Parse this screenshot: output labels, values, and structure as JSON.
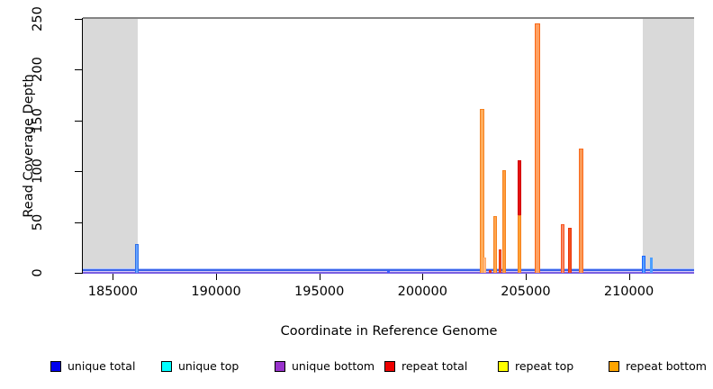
{
  "chart_data": {
    "type": "bar",
    "title": "",
    "xlabel": "Coordinate in Reference Genome",
    "ylabel": "Read Coverage Depth",
    "xlim": [
      183540,
      213160
    ],
    "ylim": [
      0,
      250
    ],
    "x_ticks": [
      185000,
      190000,
      195000,
      200000,
      205000,
      210000
    ],
    "x_tick_labels": [
      "185000",
      "190000",
      "195000",
      "200000",
      "205000",
      "210000"
    ],
    "y_ticks": [
      0,
      50,
      100,
      150,
      200,
      250
    ],
    "y_tick_labels": [
      "0",
      "50",
      "100",
      "150",
      "200",
      "250"
    ],
    "grid": false,
    "legend_position": "bottom",
    "shaded_regions": [
      {
        "from": 183540,
        "to": 186200,
        "color": "#d9d9d9"
      },
      {
        "from": 210690,
        "to": 213160,
        "color": "#d9d9d9"
      }
    ],
    "baseline_lines": [
      {
        "series": "unique top",
        "value": 0,
        "color": "#aec6ff"
      },
      {
        "series": "unique total",
        "value": 0,
        "color": "#3a62e8"
      },
      {
        "series": "unique bottom",
        "value": 0,
        "color": "#7b5fe0"
      }
    ],
    "spikes": [
      {
        "coord": 186170,
        "value": 28,
        "base": 0,
        "w": 4,
        "series": "unique total",
        "fill": "#66a3ff",
        "border": "#2e6fe8"
      },
      {
        "coord": 198350,
        "value": 2,
        "base": 0,
        "w": 3,
        "series": "unique total",
        "fill": "#3b5bff",
        "border": ""
      },
      {
        "coord": 202900,
        "value": 161,
        "base": 0,
        "w": 5,
        "series": "repeat bottom",
        "fill": "#ffad5c",
        "border": "#f58220"
      },
      {
        "coord": 203010,
        "value": 15,
        "base": 0,
        "w": 3,
        "series": "repeat bottom",
        "fill": "#ffc493",
        "border": "#ffa866"
      },
      {
        "coord": 203265,
        "value": 3,
        "base": 0,
        "w": 3,
        "series": "repeat total",
        "fill": "#e8340c",
        "border": ""
      },
      {
        "coord": 203520,
        "value": 56,
        "base": 0,
        "w": 4,
        "series": "repeat bottom",
        "fill": "#ffa64d",
        "border": "#f58220"
      },
      {
        "coord": 203740,
        "value": 23,
        "base": 0,
        "w": 3,
        "series": "repeat total",
        "fill": "#f4511e",
        "border": "#e8340c"
      },
      {
        "coord": 203950,
        "value": 101,
        "base": 0,
        "w": 4,
        "series": "repeat bottom",
        "fill": "#ff9e3d",
        "border": "#f58220"
      },
      {
        "coord": 204680,
        "value": 57,
        "base": 0,
        "w": 4,
        "series": "repeat bottom",
        "fill": "#ffa033",
        "border": "#f58220"
      },
      {
        "coord": 204680,
        "value": 111,
        "base": 57,
        "w": 4,
        "series": "repeat total",
        "fill": "#e31010",
        "border": "#d40000"
      },
      {
        "coord": 205550,
        "value": 245,
        "base": 0,
        "w": 6,
        "series": "repeat bottom",
        "fill": "#ffa061",
        "border": "#f96816"
      },
      {
        "coord": 206790,
        "value": 48,
        "base": 0,
        "w": 4,
        "series": "repeat total",
        "fill": "#fa8a68",
        "border": "#f75621"
      },
      {
        "coord": 207150,
        "value": 44,
        "base": 0,
        "w": 4,
        "series": "repeat total",
        "fill": "#f4511e",
        "border": "#e8340c"
      },
      {
        "coord": 207700,
        "value": 122,
        "base": 0,
        "w": 5,
        "series": "repeat bottom",
        "fill": "#fb9a57",
        "border": "#f96a1c"
      },
      {
        "coord": 210700,
        "value": 17,
        "base": 0,
        "w": 4,
        "series": "unique total",
        "fill": "#55a0ff",
        "border": "#1e66ff"
      },
      {
        "coord": 211090,
        "value": 15,
        "base": 0,
        "w": 3,
        "series": "unique total",
        "fill": "#4d9fff",
        "border": ""
      }
    ],
    "legend": [
      {
        "label": "unique total",
        "color": "#0000ee"
      },
      {
        "label": "unique top",
        "color": "#00ffff"
      },
      {
        "label": "unique bottom",
        "color": "#9933cc"
      },
      {
        "label": "repeat total",
        "color": "#ee0000"
      },
      {
        "label": "repeat top",
        "color": "#ffff00"
      },
      {
        "label": "repeat bottom",
        "color": "#ffa500"
      }
    ]
  }
}
